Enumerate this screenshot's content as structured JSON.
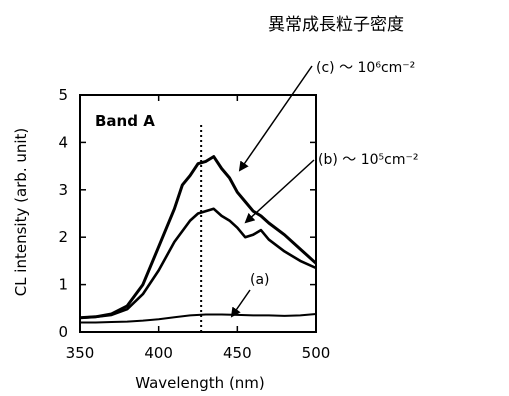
{
  "header": "異常成長粒子密度",
  "chart_data": {
    "type": "line",
    "title": "",
    "xlabel": "Wavelength (nm)",
    "ylabel": "CL intensity (arb. unit)",
    "xlim": [
      350,
      500
    ],
    "ylim": [
      0,
      5
    ],
    "xticks": [
      "350",
      "400",
      "450",
      "500"
    ],
    "yticks": [
      "0",
      "1",
      "2",
      "3",
      "4",
      "5"
    ],
    "grid": false,
    "inner_label": "Band A",
    "reference_line_x": 427,
    "series": [
      {
        "name": "(a)",
        "x": [
          350,
          360,
          370,
          380,
          390,
          400,
          410,
          420,
          430,
          440,
          450,
          460,
          470,
          480,
          490,
          500
        ],
        "y": [
          0.2,
          0.2,
          0.21,
          0.22,
          0.24,
          0.27,
          0.31,
          0.35,
          0.37,
          0.37,
          0.36,
          0.35,
          0.35,
          0.34,
          0.35,
          0.38
        ]
      },
      {
        "name": "(b) ～ 10⁵cm⁻²",
        "x": [
          350,
          360,
          370,
          380,
          390,
          400,
          410,
          420,
          425,
          430,
          435,
          440,
          445,
          450,
          455,
          460,
          465,
          470,
          480,
          490,
          500
        ],
        "y": [
          0.3,
          0.32,
          0.36,
          0.48,
          0.8,
          1.3,
          1.9,
          2.35,
          2.5,
          2.55,
          2.6,
          2.45,
          2.35,
          2.2,
          2.0,
          2.05,
          2.15,
          1.95,
          1.7,
          1.5,
          1.35
        ]
      },
      {
        "name": "(c) ～ 10⁶cm⁻²",
        "x": [
          350,
          360,
          370,
          380,
          390,
          400,
          410,
          415,
          420,
          425,
          430,
          435,
          440,
          445,
          450,
          455,
          460,
          465,
          470,
          480,
          490,
          500
        ],
        "y": [
          0.3,
          0.32,
          0.38,
          0.55,
          1.0,
          1.8,
          2.6,
          3.1,
          3.3,
          3.55,
          3.6,
          3.7,
          3.45,
          3.25,
          2.95,
          2.75,
          2.55,
          2.45,
          2.3,
          2.05,
          1.75,
          1.45
        ]
      }
    ]
  }
}
